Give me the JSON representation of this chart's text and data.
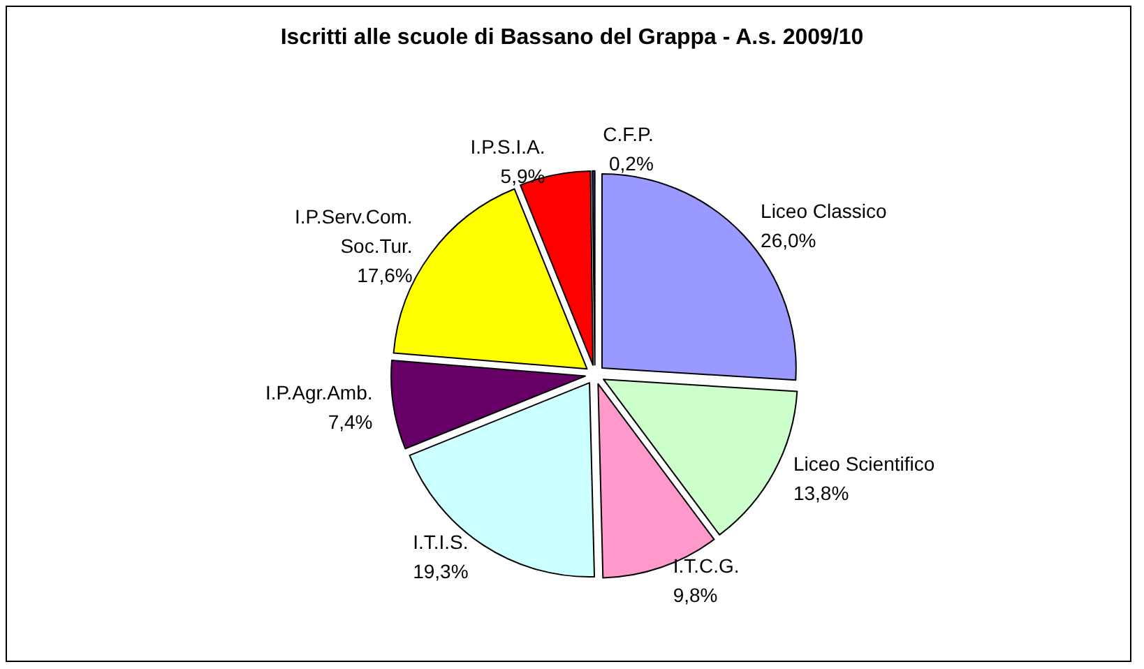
{
  "chart_data": {
    "type": "pie",
    "title": "Iscritti alle scuole di Bassano del Grappa - A.s. 2009/10",
    "categories": [
      "Liceo Classico",
      "Liceo Scientifico",
      "I.T.C.G.",
      "I.T.I.S.",
      "I.P.Agr.Amb.",
      "I.P.Serv.Com.\nSoc.Tur.",
      "I.P.S.I.A.",
      "C.F.P."
    ],
    "values": [
      26.0,
      13.8,
      9.8,
      19.3,
      7.4,
      17.6,
      5.9,
      0.2
    ],
    "colors": [
      "#9999ff",
      "#ccffcc",
      "#ff99cc",
      "#ccffff",
      "#660066",
      "#ffff00",
      "#ff0000",
      "#333399"
    ],
    "value_labels": [
      "26,0%",
      "13,8%",
      "9,8%",
      "19,3%",
      "7,4%",
      "17,6%",
      "5,9%",
      "0,2%"
    ],
    "legend": false
  }
}
